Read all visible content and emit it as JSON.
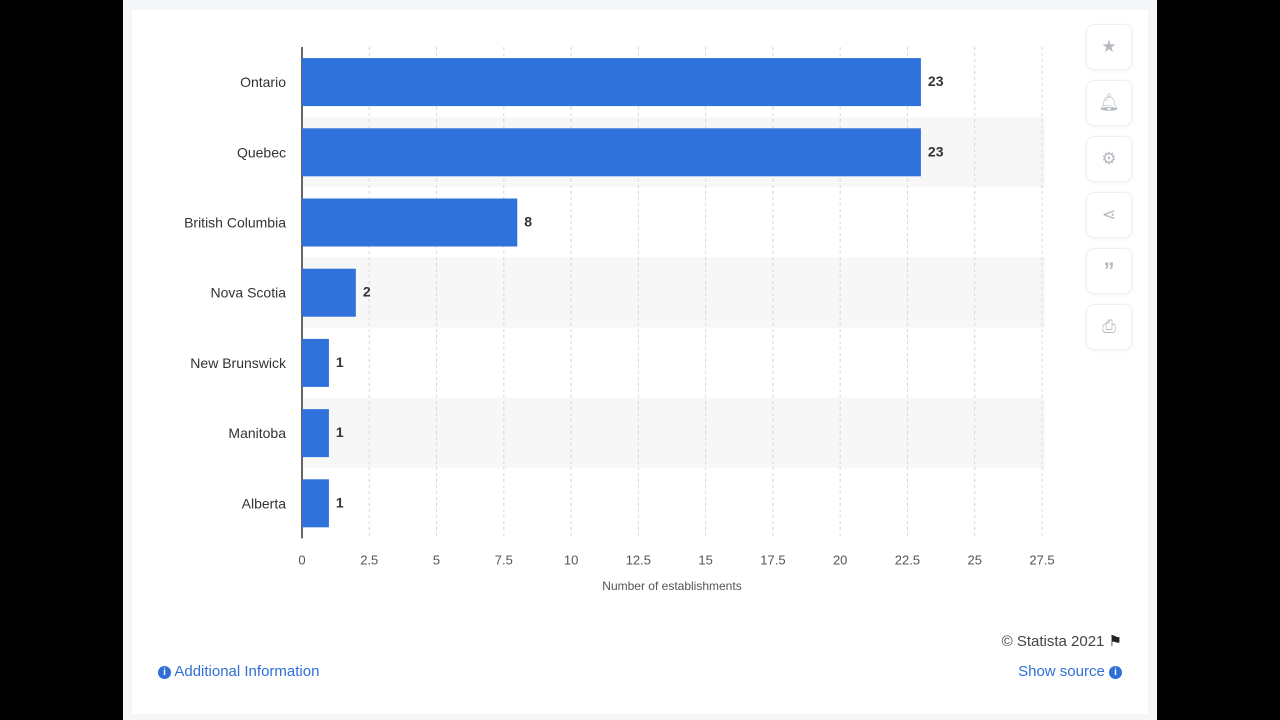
{
  "chart_data": {
    "type": "bar",
    "orientation": "horizontal",
    "categories": [
      "Ontario",
      "Quebec",
      "British Columbia",
      "Nova Scotia",
      "New Brunswick",
      "Manitoba",
      "Alberta"
    ],
    "values": [
      23,
      23,
      8,
      2,
      1,
      1,
      1
    ],
    "data_labels": [
      "23",
      "23",
      "8",
      "2",
      "1",
      "1",
      "1"
    ],
    "xlabel": "Number of establishments",
    "ylabel": "",
    "xlim": [
      0,
      27.5
    ],
    "xticks": [
      "0",
      "2.5",
      "5",
      "7.5",
      "10",
      "12.5",
      "15",
      "17.5",
      "20",
      "22.5",
      "25",
      "27.5"
    ],
    "grid": true,
    "bar_color": "#2f72db"
  },
  "toolbar": {
    "icons": [
      "star-icon",
      "bell-icon",
      "gear-icon",
      "share-icon",
      "quote-icon",
      "print-icon"
    ]
  },
  "footer": {
    "copyright": "© Statista 2021",
    "additional_info": "Additional Information",
    "show_source": "Show source"
  }
}
